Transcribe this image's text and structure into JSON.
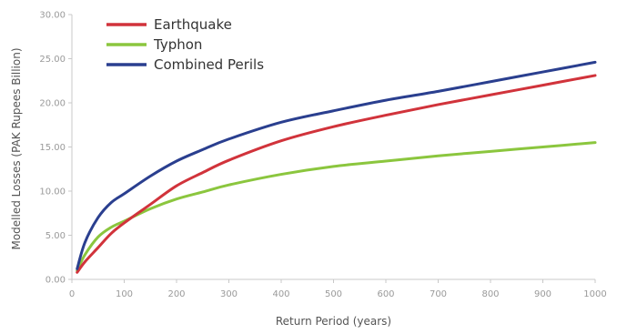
{
  "chart_data": {
    "type": "line",
    "title": "",
    "xlabel": "Return Period (years)",
    "ylabel": "Modelled Losses (PAK Rupees Billion)",
    "xlim": [
      0,
      1000
    ],
    "ylim": [
      0,
      30
    ],
    "x_ticks": [
      "0",
      "100",
      "200",
      "300",
      "400",
      "500",
      "600",
      "700",
      "800",
      "900",
      "1000"
    ],
    "y_ticks": [
      "0.00",
      "5.00",
      "10.00",
      "15.00",
      "20.00",
      "25.00",
      "30.00"
    ],
    "grid": false,
    "legend_position": "top-left",
    "series": [
      {
        "name": "Earthquake",
        "color": "#d1333b",
        "x": [
          10,
          25,
          50,
          75,
          100,
          150,
          200,
          250,
          300,
          400,
          500,
          600,
          700,
          800,
          900,
          1000
        ],
        "y": [
          0.8,
          2.0,
          3.6,
          5.2,
          6.4,
          8.5,
          10.6,
          12.1,
          13.5,
          15.7,
          17.3,
          18.6,
          19.8,
          20.9,
          22.0,
          23.1
        ]
      },
      {
        "name": "Typhon",
        "color": "#8bc63e",
        "x": [
          10,
          25,
          50,
          75,
          100,
          150,
          200,
          250,
          300,
          400,
          500,
          600,
          700,
          800,
          900,
          1000
        ],
        "y": [
          1.0,
          2.8,
          4.8,
          5.9,
          6.6,
          8.0,
          9.1,
          9.9,
          10.7,
          11.9,
          12.8,
          13.4,
          14.0,
          14.5,
          15.0,
          15.5
        ]
      },
      {
        "name": "Combined Perils",
        "color": "#2a3f8f",
        "x": [
          10,
          25,
          50,
          75,
          100,
          150,
          200,
          250,
          300,
          400,
          500,
          600,
          700,
          800,
          900,
          1000
        ],
        "y": [
          1.2,
          4.2,
          7.0,
          8.7,
          9.7,
          11.7,
          13.4,
          14.7,
          15.9,
          17.8,
          19.1,
          20.3,
          21.3,
          22.4,
          23.5,
          24.6
        ]
      }
    ]
  }
}
